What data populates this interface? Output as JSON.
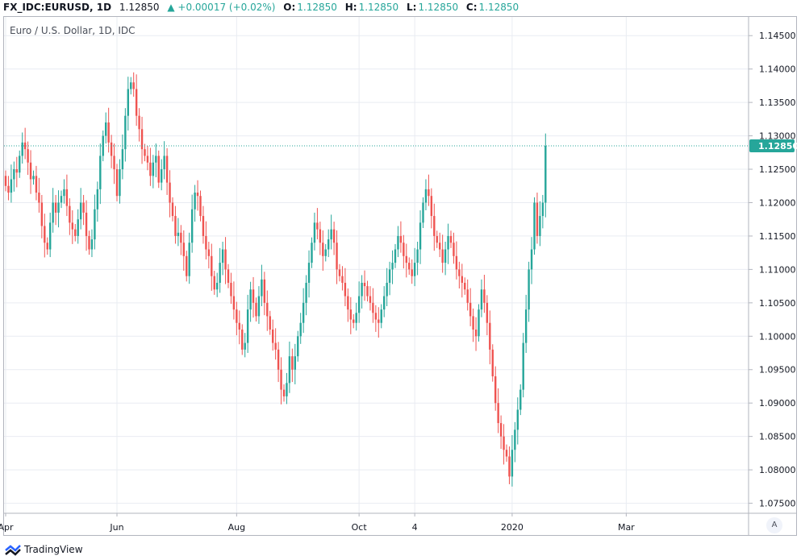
{
  "header": {
    "symbol": "FX_IDC:EURUSD, 1D",
    "last": "1.12850",
    "arrow": "▲",
    "change": "+0.00017 (+0.02%)",
    "o_key": "O:",
    "o_val": "1.12850",
    "h_key": "H:",
    "h_val": "1.12850",
    "l_key": "L:",
    "l_val": "1.12850",
    "c_key": "C:",
    "c_val": "1.12850"
  },
  "pane_title": "Euro / U.S. Dollar, 1D, IDC",
  "scale_button": "A",
  "footer": {
    "brand": "TradingView"
  },
  "colors": {
    "up": "#26a69a",
    "down": "#ef5350",
    "grid": "#e9ecf2",
    "price_line": "#26a69a"
  },
  "chart_data": {
    "type": "candlestick",
    "title": "Euro / U.S. Dollar, 1D, IDC",
    "y_ticks": [
      "1.14500",
      "1.14000",
      "1.13500",
      "1.13000",
      "1.12500",
      "1.12000",
      "1.11500",
      "1.11000",
      "1.10500",
      "1.10000",
      "1.09500",
      "1.09000",
      "1.08500",
      "1.08000",
      "1.07500"
    ],
    "x_ticks": [
      {
        "label": "Apr",
        "t": 0
      },
      {
        "label": "Jun",
        "t": 40
      },
      {
        "label": "Aug",
        "t": 83
      },
      {
        "label": "Oct",
        "t": 127
      },
      {
        "label": "4",
        "t": 147
      },
      {
        "label": "2020",
        "t": 182
      },
      {
        "label": "Mar",
        "t": 223
      }
    ],
    "ylim": [
      1.0735,
      1.1478
    ],
    "last_price": 1.1285,
    "last_price_label": "1.12850",
    "closes": [
      1.1225,
      1.1215,
      1.1235,
      1.125,
      1.1245,
      1.127,
      1.129,
      1.128,
      1.126,
      1.1235,
      1.124,
      1.1215,
      1.12,
      1.1165,
      1.114,
      1.113,
      1.117,
      1.12,
      1.1185,
      1.12,
      1.121,
      1.122,
      1.1195,
      1.117,
      1.116,
      1.115,
      1.1175,
      1.12,
      1.1185,
      1.115,
      1.113,
      1.1145,
      1.119,
      1.122,
      1.127,
      1.13,
      1.132,
      1.129,
      1.127,
      1.125,
      1.121,
      1.125,
      1.128,
      1.133,
      1.137,
      1.138,
      1.137,
      1.133,
      1.131,
      1.128,
      1.127,
      1.126,
      1.124,
      1.126,
      1.127,
      1.123,
      1.125,
      1.127,
      1.123,
      1.12,
      1.118,
      1.115,
      1.1155,
      1.114,
      1.112,
      1.109,
      1.114,
      1.119,
      1.1215,
      1.121,
      1.118,
      1.115,
      1.113,
      1.112,
      1.109,
      1.107,
      1.108,
      1.111,
      1.113,
      1.11,
      1.108,
      1.106,
      1.104,
      1.102,
      1.101,
      1.098,
      1.099,
      1.104,
      1.107,
      1.105,
      1.103,
      1.106,
      1.1085,
      1.105,
      1.103,
      1.101,
      1.099,
      1.098,
      1.095,
      1.092,
      1.091,
      1.093,
      1.097,
      1.095,
      1.097,
      1.1,
      1.102,
      1.105,
      1.108,
      1.111,
      1.114,
      1.117,
      1.116,
      1.114,
      1.112,
      1.113,
      1.1145,
      1.116,
      1.114,
      1.11,
      1.109,
      1.108,
      1.106,
      1.104,
      1.1025,
      1.102,
      1.1035,
      1.106,
      1.108,
      1.1075,
      1.106,
      1.105,
      1.1035,
      1.1025,
      1.102,
      1.104,
      1.106,
      1.108,
      1.11,
      1.111,
      1.113,
      1.115,
      1.114,
      1.112,
      1.111,
      1.11,
      1.109,
      1.111,
      1.113,
      1.117,
      1.12,
      1.122,
      1.121,
      1.118,
      1.115,
      1.114,
      1.113,
      1.111,
      1.113,
      1.115,
      1.114,
      1.112,
      1.11,
      1.109,
      1.108,
      1.107,
      1.105,
      1.103,
      1.101,
      1.1,
      1.104,
      1.107,
      1.105,
      1.102,
      1.098,
      1.094,
      1.09,
      1.087,
      1.085,
      1.083,
      1.082,
      1.079,
      1.083,
      1.086,
      1.089,
      1.092,
      1.099,
      1.104,
      1.11,
      1.113,
      1.12,
      1.115,
      1.118,
      1.12,
      1.1285
    ],
    "grid": true
  }
}
